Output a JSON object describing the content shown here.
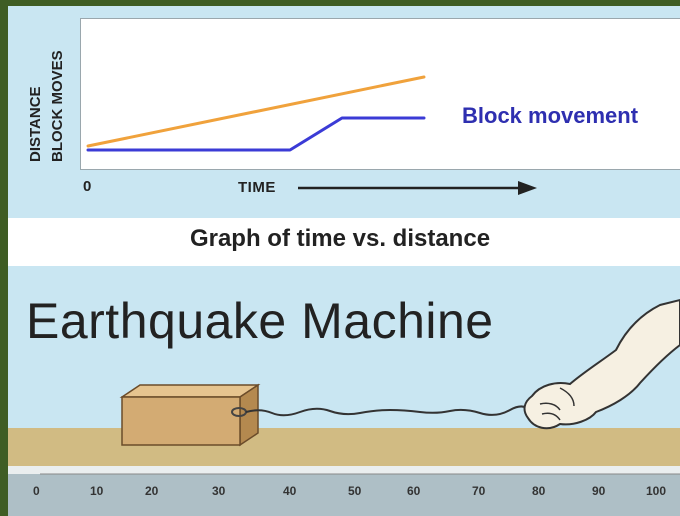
{
  "graph": {
    "y_axis_label_line1": "DISTANCE",
    "y_axis_label_line2": "BLOCK MOVES",
    "x_axis_zero": "0",
    "x_axis_label": "TIME",
    "series_label": "Block movement",
    "caption": "Graph of time vs. distance",
    "colors": {
      "block_line": "#3b3bd6",
      "pull_line": "#f0a23c"
    }
  },
  "machine": {
    "title": "Earthquake Machine",
    "ruler_ticks": [
      "0",
      "10",
      "20",
      "30",
      "40",
      "50",
      "60",
      "70",
      "80",
      "90",
      "100"
    ]
  }
}
